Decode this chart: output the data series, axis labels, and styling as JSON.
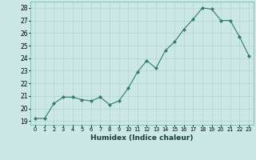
{
  "x": [
    0,
    1,
    2,
    3,
    4,
    5,
    6,
    7,
    8,
    9,
    10,
    11,
    12,
    13,
    14,
    15,
    16,
    17,
    18,
    19,
    20,
    21,
    22,
    23
  ],
  "y": [
    19.2,
    19.2,
    20.4,
    20.9,
    20.9,
    20.7,
    20.6,
    20.9,
    20.3,
    20.6,
    21.6,
    22.9,
    23.8,
    23.2,
    24.6,
    25.3,
    26.3,
    27.1,
    28.0,
    27.9,
    27.0,
    27.0,
    25.7,
    24.2
  ],
  "line_color": "#2e7d6e",
  "marker": "D",
  "marker_size": 2.0,
  "bg_color": "#cce8e4",
  "grid_color": "#b8d8d4",
  "xlabel": "Humidex (Indice chaleur)",
  "ylabel_ticks": [
    19,
    20,
    21,
    22,
    23,
    24,
    25,
    26,
    27,
    28
  ],
  "xtick_labels": [
    "0",
    "1",
    "2",
    "3",
    "4",
    "5",
    "6",
    "7",
    "8",
    "9",
    "10",
    "11",
    "12",
    "13",
    "14",
    "15",
    "16",
    "17",
    "18",
    "19",
    "20",
    "21",
    "22",
    "23"
  ],
  "ylim": [
    18.7,
    28.5
  ],
  "xlim": [
    -0.5,
    23.5
  ]
}
